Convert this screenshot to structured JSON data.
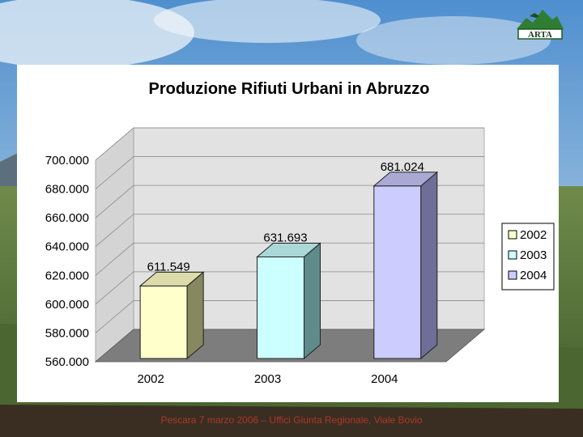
{
  "footer_text": "Pescara 7 marzo 2006 – Uffici Giunta Regionale, Viale Bovio",
  "logo_text": "ARTA",
  "chart_data": {
    "type": "bar",
    "title": "Produzione Rifiuti Urbani in Abruzzo",
    "categories": [
      "2002",
      "2003",
      "2004"
    ],
    "values": [
      611549,
      631693,
      681024
    ],
    "value_labels": [
      "611.549",
      "631.693",
      "681.024"
    ],
    "ylim": [
      560000,
      700000
    ],
    "yticks": [
      "560.000",
      "580.000",
      "600.000",
      "620.000",
      "640.000",
      "660.000",
      "680.000",
      "700.000"
    ],
    "grid": true,
    "legend_position": "right",
    "legend": [
      "2002",
      "2003",
      "2004"
    ],
    "colors": [
      "#ffffcc",
      "#ccffff",
      "#ccccff"
    ],
    "side_colors": [
      "#878760",
      "#5f8b8b",
      "#6e6e99"
    ],
    "top_colors": [
      "#dcdcaa",
      "#aad7d7",
      "#a9a9d4"
    ]
  }
}
